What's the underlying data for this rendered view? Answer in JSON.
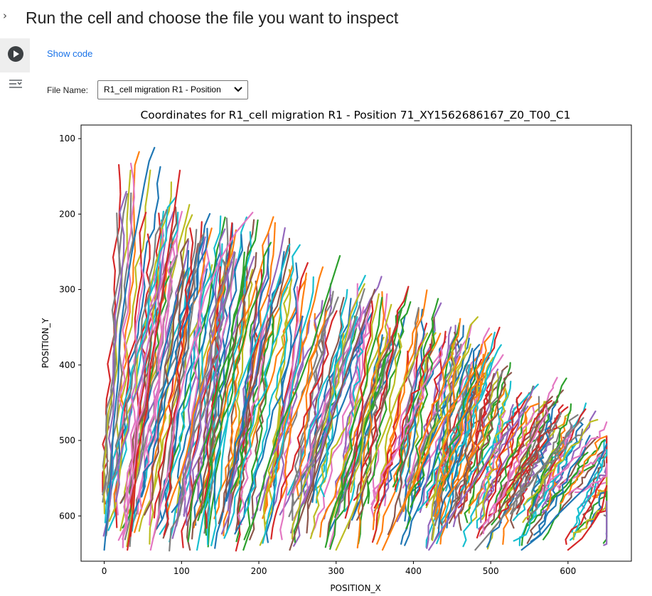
{
  "cell": {
    "title": "Run the cell and choose the file you want to inspect",
    "show_code_label": "Show code",
    "run_icon": "play-circle-icon",
    "output_icon": "output-toggle-icon",
    "collapse_icon": "chevron-right-icon"
  },
  "form": {
    "file_label": "File Name:",
    "selected_file": "R1_cell migration R1 - Position"
  },
  "chart_data": {
    "type": "line",
    "title": "Coordinates for R1_cell migration R1 - Position 71_XY1562686167_Z0_T00_C1",
    "xlabel": "POSITION_X",
    "ylabel": "POSITION_Y",
    "xlim": [
      -30,
      682
    ],
    "ylim": [
      82,
      660
    ],
    "y_inverted": true,
    "xticks": [
      0,
      100,
      200,
      300,
      400,
      500,
      600
    ],
    "yticks": [
      100,
      200,
      300,
      400,
      500,
      600
    ],
    "grid": false,
    "palette": [
      "#1f77b4",
      "#ff7f0e",
      "#2ca02c",
      "#d62728",
      "#9467bd",
      "#8c564b",
      "#e377c2",
      "#7f7f7f",
      "#bcbd22",
      "#17becf"
    ],
    "series_description": "Several hundred cell-migration tracks, each a polyline of small dot markers, starting near the lower edge (POSITION_Y about 645) and migrating upward; tracks reach highest near x 0-60 (y about 112) and their upper ends fall off toward x 650 (y about 500).",
    "series": [
      {
        "x": [
          0,
          4,
          9,
          12,
          18,
          20,
          28,
          36,
          45,
          52,
          58,
          65
        ],
        "y": [
          645,
          600,
          540,
          480,
          420,
          360,
          300,
          250,
          200,
          160,
          130,
          112
        ]
      },
      {
        "x": [
          30,
          38,
          42,
          55,
          60,
          72,
          80,
          90,
          98
        ],
        "y": [
          645,
          590,
          520,
          460,
          400,
          330,
          270,
          200,
          142
        ]
      },
      {
        "x": [
          60,
          72,
          85,
          92,
          105,
          118,
          130,
          150,
          170,
          192
        ],
        "y": [
          645,
          590,
          530,
          470,
          410,
          360,
          310,
          260,
          225,
          198
        ]
      },
      {
        "x": [
          120,
          130,
          145,
          160,
          178,
          200,
          222,
          240
        ],
        "y": [
          645,
          590,
          530,
          470,
          420,
          360,
          300,
          240
        ]
      },
      {
        "x": [
          180,
          195,
          210,
          228,
          250,
          268,
          285,
          305
        ],
        "y": [
          645,
          600,
          540,
          480,
          430,
          380,
          320,
          255
        ]
      },
      {
        "x": [
          240,
          258,
          275,
          292,
          310,
          330,
          350
        ],
        "y": [
          645,
          590,
          540,
          480,
          420,
          360,
          300
        ]
      },
      {
        "x": [
          300,
          320,
          340,
          362,
          380,
          398,
          418
        ],
        "y": [
          645,
          600,
          545,
          490,
          440,
          400,
          358
        ]
      },
      {
        "x": [
          360,
          380,
          402,
          420,
          440,
          460,
          478
        ],
        "y": [
          645,
          600,
          555,
          510,
          470,
          440,
          410
        ]
      },
      {
        "x": [
          420,
          442,
          465,
          488,
          508,
          530,
          548
        ],
        "y": [
          645,
          610,
          575,
          540,
          505,
          480,
          455
        ]
      },
      {
        "x": [
          480,
          505,
          528,
          552,
          575,
          598,
          620
        ],
        "y": [
          645,
          615,
          585,
          555,
          525,
          495,
          470
        ]
      },
      {
        "x": [
          540,
          565,
          585,
          605,
          625,
          640,
          650
        ],
        "y": [
          645,
          625,
          600,
          580,
          560,
          530,
          505
        ]
      },
      {
        "x": [
          600,
          618,
          632,
          644,
          650
        ],
        "y": [
          645,
          630,
          610,
          590,
          560
        ]
      }
    ]
  }
}
